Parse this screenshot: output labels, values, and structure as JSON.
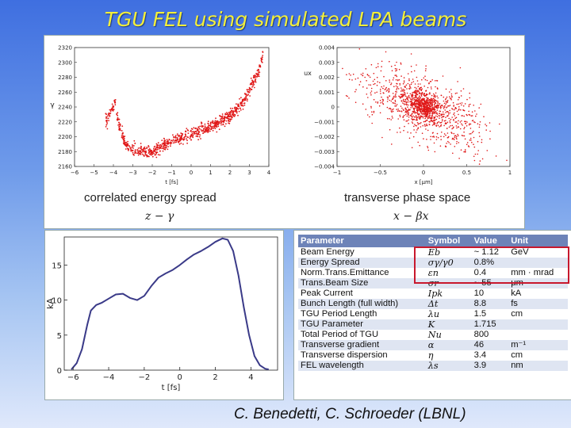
{
  "slide": {
    "title": "TGU FEL using simulated LPA beams",
    "credit": "C. Benedetti, C. Schroeder (LBNL)"
  },
  "captions": {
    "left": "correlated energy spread",
    "left_math": "z − γ",
    "right": "transverse phase space",
    "right_math": "x − βx"
  },
  "table": {
    "headers": [
      "Parameter",
      "Symbol",
      "Value",
      "Unit"
    ],
    "rows": [
      [
        "Beam Energy",
        "Eb",
        "~ 1.12",
        "GeV"
      ],
      [
        "Energy Spread",
        "σγ/γ0",
        "0.8%",
        ""
      ],
      [
        "Norm.Trans.Emittance",
        "εn",
        "0.4",
        "mm · mrad"
      ],
      [
        "Trans.Beam Size",
        "σr",
        "~ 55",
        "μm"
      ],
      [
        "Peak Current",
        "Ipk",
        "10",
        "kA"
      ],
      [
        "Bunch Length (full width)",
        "Δt",
        "8.8",
        "fs"
      ],
      [
        "TGU Period Length",
        "λu",
        "1.5",
        "cm"
      ],
      [
        "TGU Parameter",
        "K",
        "1.715",
        ""
      ],
      [
        "Total Period of TGU",
        "Nu",
        "800",
        ""
      ],
      [
        "Transverse gradient",
        "α",
        "46",
        "m⁻¹"
      ],
      [
        "Transverse dispersion",
        "η",
        "3.4",
        "cm"
      ],
      [
        "FEL wavelength",
        "λs",
        "3.9",
        "nm"
      ]
    ],
    "highlight_color": "#c8182d"
  },
  "chart_data": [
    {
      "type": "scatter",
      "xlabel": "t [fs]",
      "ylabel": "γ",
      "xlim": [
        -6,
        4
      ],
      "ylim": [
        2160,
        2320
      ],
      "xticks": [
        -6,
        -5,
        -4,
        -3,
        -2,
        -1,
        0,
        1,
        2,
        3,
        4
      ],
      "yticks": [
        2160,
        2180,
        2200,
        2220,
        2240,
        2260,
        2280,
        2300,
        2320
      ],
      "color": "#e01818",
      "trend": {
        "x": [
          -4.4,
          -3.9,
          -3.7,
          -3.4,
          -3.0,
          -2.5,
          -2.0,
          -1.5,
          -1.0,
          -0.5,
          0.0,
          0.5,
          1.0,
          1.5,
          2.0,
          2.5,
          3.0,
          3.5,
          3.7
        ],
        "y": [
          2220,
          2245,
          2215,
          2190,
          2182,
          2180,
          2178,
          2187,
          2193,
          2199,
          2203,
          2209,
          2214,
          2220,
          2228,
          2240,
          2262,
          2290,
          2312
        ]
      }
    },
    {
      "type": "scatter",
      "xlabel": "x [μm]",
      "ylabel": "ux",
      "xlim": [
        -1,
        1
      ],
      "ylim": [
        -0.004,
        0.004
      ],
      "xticks": [
        -1,
        -0.5,
        0,
        0.5,
        1
      ],
      "yticks": [
        0.004,
        0.003,
        0.002,
        0.001,
        0,
        -0.001,
        -0.002,
        -0.003,
        -0.004
      ],
      "ytick_labels": [
        "0.004",
        "0.003",
        "0.002",
        "0.001",
        "0",
        "−0.001",
        "−0.002",
        "−0.003",
        "−0.004"
      ],
      "color": "#e01818",
      "cluster_center": [
        0.0,
        0.0
      ]
    },
    {
      "type": "line",
      "xlabel": "t [fs]",
      "ylabel": "kA",
      "xlim": [
        -6.5,
        5.5
      ],
      "ylim": [
        0,
        19
      ],
      "xticks": [
        -6,
        -4,
        -2,
        0,
        2,
        4
      ],
      "yticks": [
        0,
        5,
        10,
        15
      ],
      "color": "#3a3a88",
      "x": [
        -6.1,
        -5.8,
        -5.5,
        -5.2,
        -5.0,
        -4.7,
        -4.4,
        -4.0,
        -3.6,
        -3.2,
        -2.8,
        -2.4,
        -2.0,
        -1.6,
        -1.2,
        -0.8,
        -0.4,
        0.0,
        0.4,
        0.8,
        1.2,
        1.6,
        2.0,
        2.4,
        2.7,
        3.0,
        3.3,
        3.6,
        3.9,
        4.2,
        4.5,
        4.8,
        5.0
      ],
      "y": [
        0.1,
        1.0,
        3.0,
        6.5,
        8.5,
        9.3,
        9.6,
        10.2,
        10.8,
        10.9,
        10.3,
        10.0,
        10.6,
        12.0,
        13.2,
        13.8,
        14.3,
        15.0,
        15.8,
        16.5,
        17.0,
        17.6,
        18.3,
        18.8,
        18.6,
        17.0,
        13.5,
        9.0,
        5.0,
        2.0,
        0.7,
        0.2,
        0.1
      ]
    }
  ]
}
